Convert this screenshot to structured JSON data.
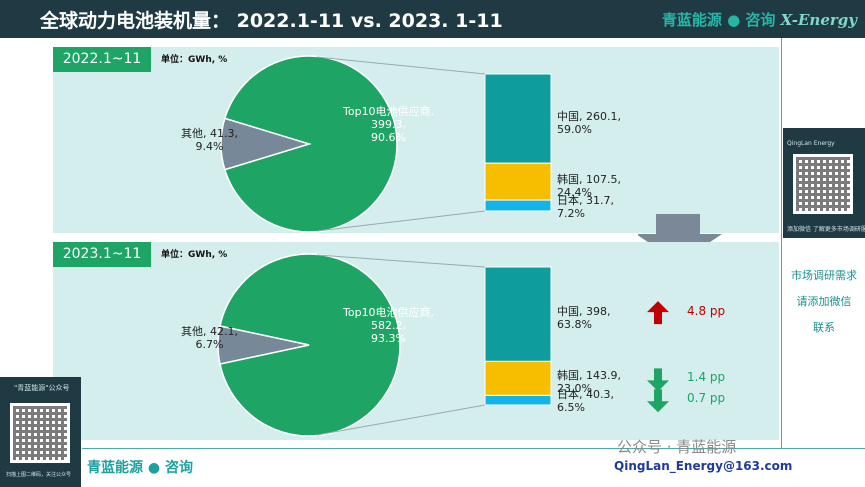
{
  "header": {
    "title": "全球动力电池装机量：   2022.1-11 vs. 2023. 1-11",
    "brand_text": "青蓝能源 ● 咨询",
    "brand_logo": "X-Energy"
  },
  "chart_data": [
    {
      "type": "pie",
      "panel_label": "2022.1~11",
      "unit": "单位：GWh, %",
      "slices": [
        {
          "label": "Top10电池供应商",
          "value": 399.3,
          "percent": 90.6,
          "text": "Top10电池供应商,\n399.3,\n90.6%",
          "color": "#1ea465"
        },
        {
          "label": "其他",
          "value": 41.3,
          "percent": 9.4,
          "text": "其他, 41.3,\n9.4%",
          "color": "#778899"
        }
      ],
      "breakdown": [
        {
          "label": "中国",
          "value": 260.1,
          "percent": 59.0,
          "text": "中国, 260.1,\n59.0%",
          "color": "#0e9c9c"
        },
        {
          "label": "韩国",
          "value": 107.5,
          "percent": 24.4,
          "text": "韩国, 107.5,\n24.4%",
          "color": "#f7be00"
        },
        {
          "label": "日本",
          "value": 31.7,
          "percent": 7.2,
          "text": "日本, 31.7,\n7.2%",
          "color": "#13b4e8"
        }
      ]
    },
    {
      "type": "pie",
      "panel_label": "2023.1~11",
      "unit": "单位：GWh, %",
      "slices": [
        {
          "label": "Top10电池供应商",
          "value": 582.2,
          "percent": 93.3,
          "text": "Top10电池供应商,\n582.2,\n93.3%",
          "color": "#1ea465"
        },
        {
          "label": "其他",
          "value": 42.1,
          "percent": 6.7,
          "text": "其他, 42.1,\n6.7%",
          "color": "#778899"
        }
      ],
      "breakdown": [
        {
          "label": "中国",
          "value": 398,
          "percent": 63.8,
          "text": "中国, 398,\n63.8%",
          "color": "#0e9c9c"
        },
        {
          "label": "韩国",
          "value": 143.9,
          "percent": 23.0,
          "text": "韩国, 143.9,\n23.0%",
          "color": "#f7be00"
        },
        {
          "label": "日本",
          "value": 40.3,
          "percent": 6.5,
          "text": "日本, 40.3,\n6.5%",
          "color": "#13b4e8"
        }
      ],
      "changes": [
        {
          "text": "4.8 pp",
          "direction": "up",
          "color": "#c00000"
        },
        {
          "text": "1.4 pp",
          "direction": "down",
          "color": "#1ea465"
        },
        {
          "text": "0.7 pp",
          "direction": "down",
          "color": "#1ea465"
        }
      ]
    }
  ],
  "sidebar": {
    "qr_title": "QingLan Energy",
    "qr_caption": "添加微信 了解更多市场调研服务",
    "links": [
      "市场调研需求",
      "请添加微信",
      "联系"
    ]
  },
  "left_card": {
    "title": "\"青蓝能源\"公众号",
    "caption": "扫描上图二维码，关注公众号"
  },
  "footer": {
    "brand": "青蓝能源 ● 咨询",
    "email": "QingLan_Energy@163.com",
    "watermark": "公众号 · 青蓝能源"
  }
}
